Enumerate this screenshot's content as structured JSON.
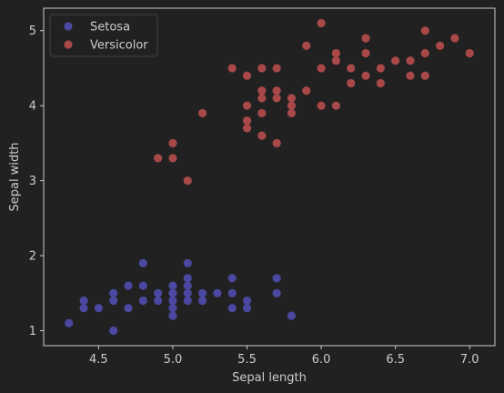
{
  "chart_data": {
    "type": "scatter",
    "xlabel": "Sepal length",
    "ylabel": "Sepal width",
    "xlim": [
      4.13,
      7.17
    ],
    "ylim": [
      0.8,
      5.3
    ],
    "xticks": [
      "4.5",
      "5.0",
      "5.5",
      "6.0",
      "6.5",
      "7.0"
    ],
    "yticks": [
      "1",
      "2",
      "3",
      "4",
      "5"
    ],
    "grid": false,
    "legend_position": "top-left",
    "colors": {
      "background": "#212121",
      "axes": "#cccccc",
      "text": "#cccccc"
    },
    "series": [
      {
        "name": "Setosa",
        "color": "#4a48a0",
        "points": [
          [
            4.3,
            1.1
          ],
          [
            4.4,
            1.4
          ],
          [
            4.4,
            1.3
          ],
          [
            4.5,
            1.3
          ],
          [
            4.6,
            1.5
          ],
          [
            4.6,
            1.4
          ],
          [
            4.6,
            1.0
          ],
          [
            4.7,
            1.6
          ],
          [
            4.7,
            1.3
          ],
          [
            4.8,
            1.9
          ],
          [
            4.8,
            1.6
          ],
          [
            4.8,
            1.4
          ],
          [
            4.9,
            1.5
          ],
          [
            4.9,
            1.4
          ],
          [
            5.0,
            1.6
          ],
          [
            5.0,
            1.5
          ],
          [
            5.0,
            1.4
          ],
          [
            5.0,
            1.3
          ],
          [
            5.0,
            1.2
          ],
          [
            5.1,
            1.9
          ],
          [
            5.1,
            1.7
          ],
          [
            5.1,
            1.6
          ],
          [
            5.1,
            1.5
          ],
          [
            5.1,
            1.4
          ],
          [
            5.2,
            1.5
          ],
          [
            5.2,
            1.4
          ],
          [
            5.3,
            1.5
          ],
          [
            5.4,
            1.7
          ],
          [
            5.4,
            1.5
          ],
          [
            5.4,
            1.3
          ],
          [
            5.5,
            1.4
          ],
          [
            5.5,
            1.3
          ],
          [
            5.7,
            1.7
          ],
          [
            5.7,
            1.5
          ],
          [
            5.8,
            1.2
          ]
        ]
      },
      {
        "name": "Versicolor",
        "color": "#a84848",
        "points": [
          [
            4.9,
            3.3
          ],
          [
            5.0,
            3.5
          ],
          [
            5.0,
            3.3
          ],
          [
            5.1,
            3.0
          ],
          [
            5.2,
            3.9
          ],
          [
            5.4,
            4.5
          ],
          [
            5.5,
            4.4
          ],
          [
            5.5,
            4.0
          ],
          [
            5.5,
            3.8
          ],
          [
            5.5,
            3.7
          ],
          [
            5.6,
            4.5
          ],
          [
            5.6,
            4.2
          ],
          [
            5.6,
            4.1
          ],
          [
            5.6,
            3.9
          ],
          [
            5.6,
            3.6
          ],
          [
            5.7,
            4.5
          ],
          [
            5.7,
            4.2
          ],
          [
            5.7,
            4.1
          ],
          [
            5.7,
            3.5
          ],
          [
            5.8,
            4.1
          ],
          [
            5.8,
            4.0
          ],
          [
            5.8,
            3.9
          ],
          [
            5.9,
            4.8
          ],
          [
            5.9,
            4.2
          ],
          [
            6.0,
            5.1
          ],
          [
            6.0,
            4.5
          ],
          [
            6.0,
            4.0
          ],
          [
            6.1,
            4.7
          ],
          [
            6.1,
            4.6
          ],
          [
            6.1,
            4.0
          ],
          [
            6.2,
            4.5
          ],
          [
            6.2,
            4.3
          ],
          [
            6.3,
            4.9
          ],
          [
            6.3,
            4.7
          ],
          [
            6.3,
            4.4
          ],
          [
            6.4,
            4.5
          ],
          [
            6.4,
            4.3
          ],
          [
            6.5,
            4.6
          ],
          [
            6.6,
            4.6
          ],
          [
            6.6,
            4.4
          ],
          [
            6.7,
            5.0
          ],
          [
            6.7,
            4.7
          ],
          [
            6.7,
            4.4
          ],
          [
            6.8,
            4.8
          ],
          [
            6.9,
            4.9
          ],
          [
            7.0,
            4.7
          ]
        ]
      }
    ]
  }
}
